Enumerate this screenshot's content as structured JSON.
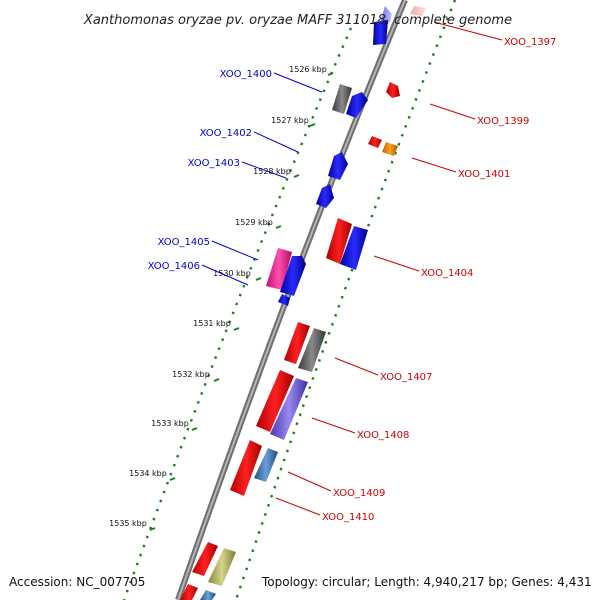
{
  "title": "Xanthomonas oryzae pv. oryzae MAFF 311018, complete genome",
  "footer": {
    "accession": "Accession: NC_007705",
    "topology": "Topology: circular; Length: 4,940,217 bp; Genes: 4,431"
  },
  "colors": {
    "forward_label": "#0000cc",
    "reverse_label": "#cc0000",
    "axis": "#8c8c8c",
    "tick": "#1b7d1b"
  },
  "kbp_ticks": [
    {
      "label": "1526 kbp",
      "value": 1526
    },
    {
      "label": "1527 kbp",
      "value": 1527
    },
    {
      "label": "1528 kbp",
      "value": 1528
    },
    {
      "label": "1529 kbp",
      "value": 1529
    },
    {
      "label": "1530 kbp",
      "value": 1530
    },
    {
      "label": "1531 kbp",
      "value": 1531
    },
    {
      "label": "1532 kbp",
      "value": 1532
    },
    {
      "label": "1533 kbp",
      "value": 1533
    },
    {
      "label": "1534 kbp",
      "value": 1534
    },
    {
      "label": "1535 kbp",
      "value": 1535
    }
  ],
  "gene_labels": [
    {
      "id": "XOO_1397",
      "strand": "reverse"
    },
    {
      "id": "XOO_1399",
      "strand": "reverse"
    },
    {
      "id": "XOO_1400",
      "strand": "forward"
    },
    {
      "id": "XOO_1401",
      "strand": "reverse"
    },
    {
      "id": "XOO_1402",
      "strand": "forward"
    },
    {
      "id": "XOO_1403",
      "strand": "forward"
    },
    {
      "id": "XOO_1404",
      "strand": "reverse"
    },
    {
      "id": "XOO_1405",
      "strand": "forward"
    },
    {
      "id": "XOO_1406",
      "strand": "forward"
    },
    {
      "id": "XOO_1407",
      "strand": "reverse"
    },
    {
      "id": "XOO_1408",
      "strand": "reverse"
    },
    {
      "id": "XOO_1409",
      "strand": "reverse"
    },
    {
      "id": "XOO_1410",
      "strand": "reverse"
    }
  ]
}
